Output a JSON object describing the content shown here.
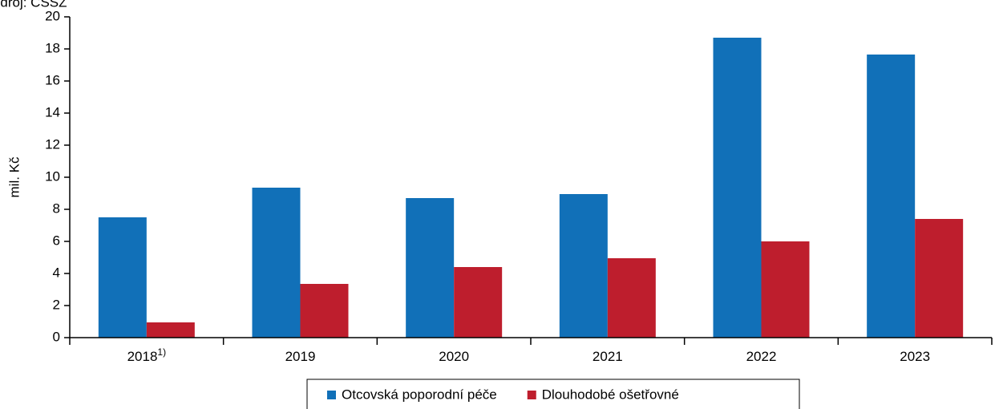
{
  "chart_data": {
    "type": "bar",
    "source": "Zdroj: ČSSZ",
    "ylabel": "mil. Kč",
    "categories": [
      "2018",
      "2019",
      "2020",
      "2021",
      "2022",
      "2023"
    ],
    "category_note": "1)",
    "series": [
      {
        "name": "Otcovská poporodní péče",
        "color": "#1170b8",
        "values": [
          7.5,
          9.35,
          8.7,
          8.95,
          18.7,
          17.65
        ]
      },
      {
        "name": "Dlouhodobé ošetřovné",
        "color": "#be1e2d",
        "values": [
          0.95,
          3.35,
          4.4,
          4.95,
          6.0,
          7.4
        ]
      }
    ],
    "ylim": [
      0,
      20
    ],
    "yticks": [
      0,
      2,
      4,
      6,
      8,
      10,
      12,
      14,
      16,
      18,
      20
    ],
    "legend": "bottom"
  }
}
